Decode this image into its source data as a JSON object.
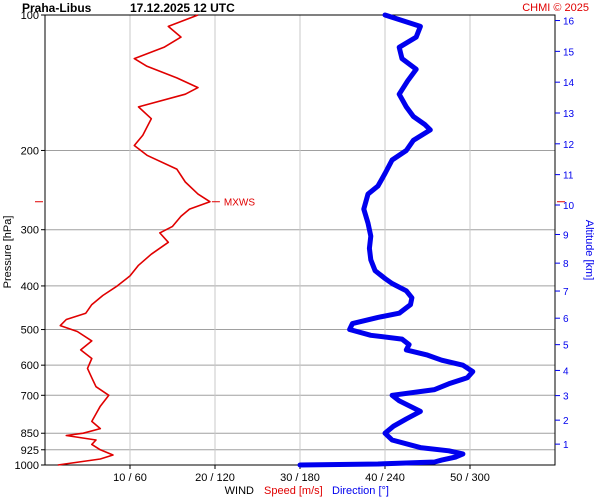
{
  "header": {
    "station": "Praha-Libus",
    "datetime": "17.12.2025 12 UTC",
    "copyright": "CHMI © 2025"
  },
  "axes": {
    "left_label": "Pressure [hPa]",
    "right_label": "Altitude [km]",
    "bottom_prefix": "WIND",
    "bottom_speed": "Speed [m/s]",
    "bottom_direction": "Direction [°]"
  },
  "colors": {
    "speed": "#e00000",
    "direction": "#0000ee",
    "grid": "#a0a0a0",
    "axis": "#000000",
    "copyright": "#e00000"
  },
  "chart_data": {
    "type": "line",
    "pressure_ticks": [
      {
        "label": "100",
        "p": 100
      },
      {
        "label": "200",
        "p": 200
      },
      {
        "label": "300",
        "p": 300
      },
      {
        "label": "400",
        "p": 400
      },
      {
        "label": "500",
        "p": 500
      },
      {
        "label": "600",
        "p": 600
      },
      {
        "label": "700",
        "p": 700
      },
      {
        "label": "850",
        "p": 850
      },
      {
        "label": "925",
        "p": 925
      },
      {
        "label": "1000",
        "p": 1000
      }
    ],
    "pressure_range": [
      100,
      1000
    ],
    "pressure_scale": "log",
    "altitude_ticks": [
      {
        "label": "1",
        "km": 1
      },
      {
        "label": "2",
        "km": 2
      },
      {
        "label": "3",
        "km": 3
      },
      {
        "label": "4",
        "km": 4
      },
      {
        "label": "5",
        "km": 5
      },
      {
        "label": "6",
        "km": 6
      },
      {
        "label": "7",
        "km": 7
      },
      {
        "label": "8",
        "km": 8
      },
      {
        "label": "9",
        "km": 9
      },
      {
        "label": "10",
        "km": 10
      },
      {
        "label": "11",
        "km": 11
      },
      {
        "label": "12",
        "km": 12
      },
      {
        "label": "13",
        "km": 13
      },
      {
        "label": "14",
        "km": 14
      },
      {
        "label": "15",
        "km": 15
      },
      {
        "label": "16",
        "km": 16
      }
    ],
    "wind_ticks": [
      {
        "label": "10 / 60",
        "speed": 10,
        "dir": 60
      },
      {
        "label": "20 / 120",
        "speed": 20,
        "dir": 120
      },
      {
        "label": "30 / 180",
        "speed": 30,
        "dir": 180
      },
      {
        "label": "40 / 240",
        "speed": 40,
        "dir": 240
      },
      {
        "label": "50 / 300",
        "speed": 50,
        "dir": 300
      }
    ],
    "speed_range_ms": [
      0,
      60
    ],
    "direction_range_deg": [
      0,
      360
    ],
    "mxws": {
      "label": "MXWS",
      "pressure": 260,
      "speed": 19.4
    },
    "series": [
      {
        "name": "Speed [m/s]",
        "unit": "m/s",
        "points": [
          [
            1000,
            1.5
          ],
          [
            985,
            4.0
          ],
          [
            970,
            6.5
          ],
          [
            950,
            8.0
          ],
          [
            925,
            6.5
          ],
          [
            900,
            5.5
          ],
          [
            880,
            6.0
          ],
          [
            860,
            2.5
          ],
          [
            850,
            4.5
          ],
          [
            830,
            6.5
          ],
          [
            800,
            5.5
          ],
          [
            770,
            6.0
          ],
          [
            740,
            6.5
          ],
          [
            700,
            7.5
          ],
          [
            670,
            6.0
          ],
          [
            640,
            5.5
          ],
          [
            610,
            5.0
          ],
          [
            580,
            5.5
          ],
          [
            555,
            4.2
          ],
          [
            530,
            5.5
          ],
          [
            505,
            3.8
          ],
          [
            490,
            1.8
          ],
          [
            475,
            2.5
          ],
          [
            460,
            4.8
          ],
          [
            440,
            5.5
          ],
          [
            420,
            6.8
          ],
          [
            400,
            8.5
          ],
          [
            380,
            10.0
          ],
          [
            360,
            11.0
          ],
          [
            340,
            12.5
          ],
          [
            320,
            14.5
          ],
          [
            305,
            13.5
          ],
          [
            295,
            15.0
          ],
          [
            280,
            16.0
          ],
          [
            270,
            17.0
          ],
          [
            260,
            19.4
          ],
          [
            250,
            18.0
          ],
          [
            235,
            16.5
          ],
          [
            220,
            15.5
          ],
          [
            205,
            12.0
          ],
          [
            195,
            10.5
          ],
          [
            185,
            11.5
          ],
          [
            170,
            12.5
          ],
          [
            160,
            11.0
          ],
          [
            150,
            16.5
          ],
          [
            145,
            18.0
          ],
          [
            138,
            15.5
          ],
          [
            130,
            12.0
          ],
          [
            125,
            10.5
          ],
          [
            118,
            14.0
          ],
          [
            112,
            16.0
          ],
          [
            106,
            14.5
          ],
          [
            100,
            18.0
          ]
        ]
      },
      {
        "name": "Direction [°]",
        "unit": "deg",
        "points": [
          [
            1000,
            180
          ],
          [
            995,
            235
          ],
          [
            985,
            275
          ],
          [
            975,
            280
          ],
          [
            960,
            290
          ],
          [
            945,
            295
          ],
          [
            930,
            285
          ],
          [
            915,
            265
          ],
          [
            880,
            245
          ],
          [
            850,
            240
          ],
          [
            820,
            246
          ],
          [
            790,
            255
          ],
          [
            760,
            265
          ],
          [
            720,
            250
          ],
          [
            700,
            245
          ],
          [
            680,
            275
          ],
          [
            660,
            285
          ],
          [
            640,
            298
          ],
          [
            620,
            302
          ],
          [
            600,
            295
          ],
          [
            585,
            280
          ],
          [
            570,
            270
          ],
          [
            555,
            255
          ],
          [
            540,
            257
          ],
          [
            525,
            252
          ],
          [
            515,
            230
          ],
          [
            500,
            215
          ],
          [
            485,
            217
          ],
          [
            470,
            235
          ],
          [
            460,
            250
          ],
          [
            440,
            258
          ],
          [
            425,
            259
          ],
          [
            410,
            255
          ],
          [
            395,
            245
          ],
          [
            385,
            240
          ],
          [
            370,
            233
          ],
          [
            350,
            230
          ],
          [
            330,
            229
          ],
          [
            310,
            230
          ],
          [
            290,
            228
          ],
          [
            270,
            225
          ],
          [
            250,
            228
          ],
          [
            240,
            235
          ],
          [
            225,
            240
          ],
          [
            210,
            245
          ],
          [
            200,
            255
          ],
          [
            190,
            260
          ],
          [
            180,
            272
          ],
          [
            175,
            268
          ],
          [
            168,
            260
          ],
          [
            160,
            255
          ],
          [
            150,
            250
          ],
          [
            140,
            256
          ],
          [
            132,
            262
          ],
          [
            125,
            252
          ],
          [
            118,
            250
          ],
          [
            112,
            262
          ],
          [
            106,
            265
          ],
          [
            100,
            240
          ]
        ]
      }
    ]
  }
}
